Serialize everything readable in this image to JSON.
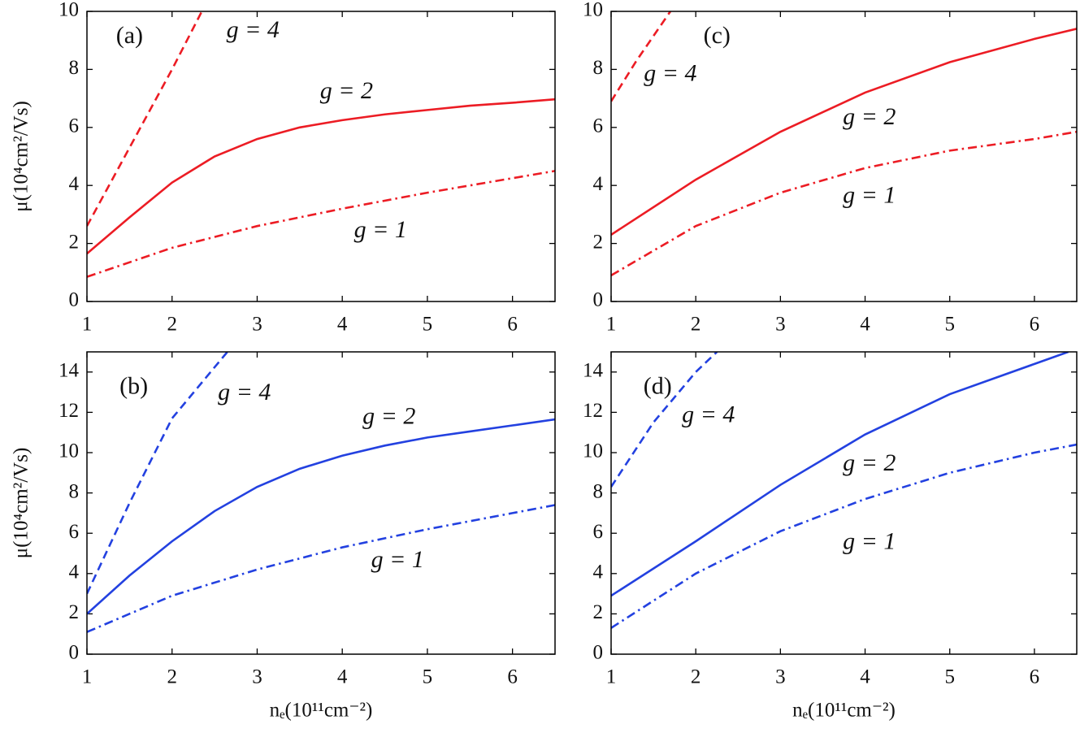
{
  "chart_data": [
    {
      "type": "line",
      "panel_label": "(a)",
      "y_label": "μ(10⁴cm²/Vs)",
      "xlim": [
        1,
        6.5
      ],
      "xticks": [
        1,
        2,
        3,
        4,
        5,
        6
      ],
      "ylim": [
        0,
        10
      ],
      "yticks": [
        0,
        2,
        4,
        6,
        8,
        10
      ],
      "series": [
        {
          "name": "g = 4",
          "color": "#ec1c24",
          "dash": "dashed",
          "x": [
            1,
            1.5,
            2,
            2.35
          ],
          "values": [
            2.6,
            5.3,
            8.0,
            10
          ]
        },
        {
          "name": "g = 2",
          "color": "#ec1c24",
          "dash": "solid",
          "x": [
            1,
            1.5,
            2,
            2.5,
            3,
            3.5,
            4,
            4.5,
            5,
            5.5,
            6,
            6.5
          ],
          "values": [
            1.65,
            2.9,
            4.1,
            5.0,
            5.6,
            6.0,
            6.25,
            6.45,
            6.6,
            6.75,
            6.85,
            6.97
          ]
        },
        {
          "name": "g = 1",
          "color": "#ec1c24",
          "dash": "dashdot",
          "x": [
            1,
            2,
            3,
            4,
            5,
            6,
            6.5
          ],
          "values": [
            0.85,
            1.85,
            2.6,
            3.2,
            3.75,
            4.25,
            4.5
          ]
        }
      ]
    },
    {
      "type": "line",
      "panel_label": "(b)",
      "y_label": "μ(10⁴cm²/Vs)",
      "x_label": "nₑ(10¹¹cm⁻²)",
      "xlim": [
        1,
        6.5
      ],
      "xticks": [
        1,
        2,
        3,
        4,
        5,
        6
      ],
      "ylim": [
        0,
        15
      ],
      "yticks": [
        0,
        2,
        4,
        6,
        8,
        10,
        12,
        14
      ],
      "series": [
        {
          "name": "g = 4",
          "color": "#2341e0",
          "dash": "dashed",
          "x": [
            1,
            1.5,
            2,
            2.65
          ],
          "values": [
            3.0,
            7.5,
            11.7,
            15
          ]
        },
        {
          "name": "g = 2",
          "color": "#2341e0",
          "dash": "solid",
          "x": [
            1,
            1.5,
            2,
            2.5,
            3,
            3.5,
            4,
            4.5,
            5,
            5.5,
            6,
            6.5
          ],
          "values": [
            2.0,
            3.9,
            5.6,
            7.1,
            8.3,
            9.2,
            9.85,
            10.35,
            10.75,
            11.05,
            11.35,
            11.65
          ]
        },
        {
          "name": "g = 1",
          "color": "#2341e0",
          "dash": "dashdot",
          "x": [
            1,
            2,
            3,
            4,
            5,
            6,
            6.5
          ],
          "values": [
            1.1,
            2.9,
            4.2,
            5.3,
            6.2,
            7.0,
            7.4
          ]
        }
      ]
    },
    {
      "type": "line",
      "panel_label": "(c)",
      "xlim": [
        1,
        6.5
      ],
      "xticks": [
        1,
        2,
        3,
        4,
        5,
        6
      ],
      "ylim": [
        0,
        10
      ],
      "yticks": [
        0,
        2,
        4,
        6,
        8,
        10
      ],
      "series": [
        {
          "name": "g = 4",
          "color": "#ec1c24",
          "dash": "dashed",
          "x": [
            1,
            1.3,
            1.7
          ],
          "values": [
            6.9,
            8.3,
            10
          ]
        },
        {
          "name": "g = 2",
          "color": "#ec1c24",
          "dash": "solid",
          "x": [
            1,
            2,
            3,
            4,
            5,
            6,
            6.5
          ],
          "values": [
            2.3,
            4.2,
            5.85,
            7.2,
            8.25,
            9.05,
            9.4
          ]
        },
        {
          "name": "g = 1",
          "color": "#ec1c24",
          "dash": "dashdot",
          "x": [
            1,
            2,
            3,
            4,
            5,
            6,
            6.5
          ],
          "values": [
            0.9,
            2.6,
            3.75,
            4.6,
            5.2,
            5.6,
            5.85
          ]
        }
      ]
    },
    {
      "type": "line",
      "panel_label": "(d)",
      "x_label": "nₑ(10¹¹cm⁻²)",
      "xlim": [
        1,
        6.5
      ],
      "xticks": [
        1,
        2,
        3,
        4,
        5,
        6
      ],
      "ylim": [
        0,
        15
      ],
      "yticks": [
        0,
        2,
        4,
        6,
        8,
        10,
        12,
        14
      ],
      "series": [
        {
          "name": "g = 4",
          "color": "#2341e0",
          "dash": "dashed",
          "x": [
            1,
            1.5,
            2,
            2.25
          ],
          "values": [
            8.3,
            11.5,
            14.0,
            15
          ]
        },
        {
          "name": "g = 2",
          "color": "#2341e0",
          "dash": "solid",
          "x": [
            1,
            2,
            3,
            4,
            5,
            6,
            6.4
          ],
          "values": [
            2.9,
            5.6,
            8.4,
            10.9,
            12.9,
            14.4,
            15
          ]
        },
        {
          "name": "g = 1",
          "color": "#2341e0",
          "dash": "dashdot",
          "x": [
            1,
            2,
            3,
            4,
            5,
            6,
            6.5
          ],
          "values": [
            1.3,
            4.0,
            6.1,
            7.7,
            9.0,
            10.0,
            10.4
          ]
        }
      ]
    }
  ]
}
